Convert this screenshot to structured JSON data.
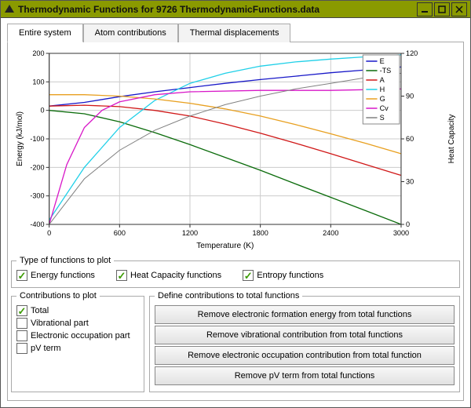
{
  "window": {
    "title": "Thermodynamic Functions for 9726 ThermodynamicFunctions.data"
  },
  "tabs": [
    {
      "label": "Entire system",
      "active": true
    },
    {
      "label": "Atom contributions",
      "active": false
    },
    {
      "label": "Thermal displacements",
      "active": false
    }
  ],
  "chart": {
    "xlabel": "Temperature (K)",
    "ylabel_left": "Energy (kJ/mol)",
    "ylabel_right": "Heat Capacity",
    "xlim": [
      0,
      3000
    ],
    "ylim_left": [
      -400,
      200
    ],
    "ylim_right": [
      0,
      120
    ],
    "xticks": [
      0,
      600,
      1200,
      1800,
      2400,
      3000
    ],
    "yticks_left": [
      -400,
      -300,
      -200,
      -100,
      0,
      100,
      200
    ],
    "yticks_right": [
      0,
      30,
      60,
      90,
      120
    ],
    "background_color": "#ffffff",
    "grid_color": "#cccccc",
    "border_color": "#333333",
    "label_fontsize": 10,
    "tick_fontsize": 9,
    "series": [
      {
        "name": "E",
        "color": "#1818c8",
        "axis": "left",
        "width": 1.3,
        "x": [
          0,
          300,
          600,
          900,
          1200,
          1500,
          1800,
          2100,
          2400,
          2700,
          3000
        ],
        "y": [
          15,
          28,
          48,
          65,
          80,
          95,
          108,
          120,
          132,
          142,
          152
        ]
      },
      {
        "name": "-TS",
        "color": "#0a6b0a",
        "axis": "left",
        "width": 1.3,
        "x": [
          0,
          300,
          600,
          900,
          1200,
          1500,
          1800,
          2100,
          2400,
          2700,
          3000
        ],
        "y": [
          0,
          -12,
          -40,
          -78,
          -120,
          -165,
          -210,
          -258,
          -305,
          -352,
          -400
        ]
      },
      {
        "name": "A",
        "color": "#d01818",
        "axis": "left",
        "width": 1.3,
        "x": [
          0,
          300,
          600,
          900,
          1200,
          1500,
          1800,
          2100,
          2400,
          2700,
          3000
        ],
        "y": [
          15,
          18,
          13,
          0,
          -20,
          -48,
          -80,
          -115,
          -152,
          -190,
          -228
        ]
      },
      {
        "name": "H",
        "color": "#20d0e8",
        "axis": "left",
        "width": 1.3,
        "x": [
          0,
          300,
          600,
          900,
          1200,
          1500,
          1800,
          2100,
          2400,
          2700,
          3000
        ],
        "y": [
          -385,
          -200,
          -60,
          35,
          95,
          130,
          155,
          170,
          180,
          188,
          195
        ]
      },
      {
        "name": "G",
        "color": "#e8a020",
        "axis": "left",
        "width": 1.3,
        "x": [
          0,
          300,
          600,
          900,
          1200,
          1500,
          1800,
          2100,
          2400,
          2700,
          3000
        ],
        "y": [
          55,
          55,
          50,
          40,
          25,
          5,
          -20,
          -50,
          -82,
          -116,
          -152
        ]
      },
      {
        "name": "Cv",
        "color": "#d818c8",
        "axis": "right",
        "width": 1.3,
        "x": [
          0,
          150,
          300,
          450,
          600,
          900,
          1200,
          1800,
          2400,
          3000
        ],
        "y": [
          0,
          42,
          68,
          80,
          86,
          91,
          93,
          94,
          94,
          95
        ]
      },
      {
        "name": "S",
        "color": "#808080",
        "axis": "right",
        "width": 1.0,
        "x": [
          0,
          300,
          600,
          900,
          1200,
          1500,
          1800,
          2100,
          2400,
          2700,
          3000
        ],
        "y": [
          0,
          32,
          52,
          66,
          76,
          84,
          90,
          95,
          99,
          103,
          106
        ]
      }
    ]
  },
  "type_group": {
    "legend": "Type of functions to plot",
    "items": [
      {
        "label": "Energy functions",
        "checked": true
      },
      {
        "label": "Heat Capacity functions",
        "checked": true
      },
      {
        "label": "Entropy functions",
        "checked": true
      }
    ]
  },
  "contrib_group": {
    "legend": "Contributions to plot",
    "items": [
      {
        "label": "Total",
        "checked": true
      },
      {
        "label": "Vibrational part",
        "checked": false
      },
      {
        "label": "Electronic occupation part",
        "checked": false
      },
      {
        "label": "pV term",
        "checked": false
      }
    ]
  },
  "define_group": {
    "legend": "Define contributions to total functions",
    "buttons": [
      "Remove electronic formation energy from total functions",
      "Remove vibrational contribution from total functions",
      "Remove electronic occupation contribution from total function",
      "Remove pV term from total functions"
    ]
  }
}
